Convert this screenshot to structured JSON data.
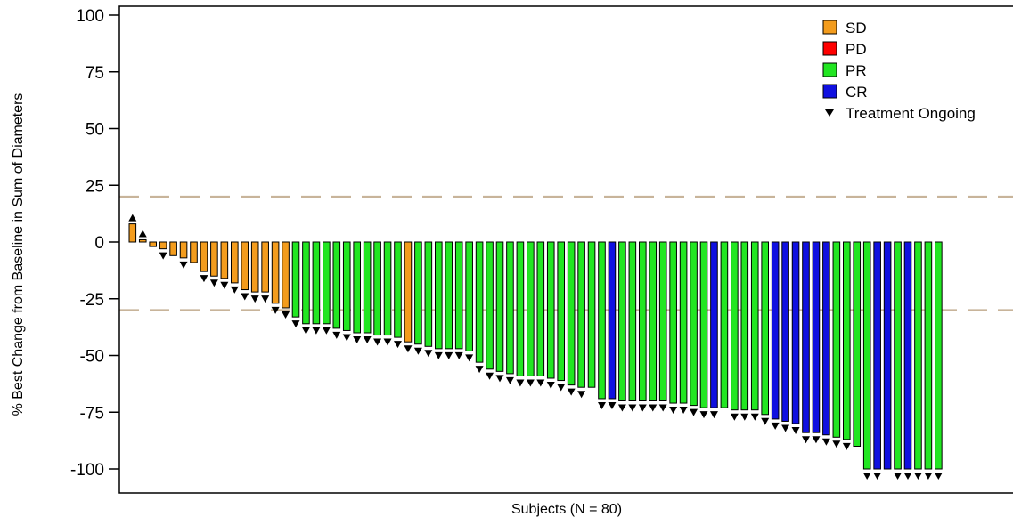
{
  "chart_data": {
    "type": "bar",
    "title": "",
    "xlabel": "Subjects (N = 80)",
    "ylabel": "% Best Change from Baseline in Sum of Diameters",
    "ylim": [
      -110,
      100
    ],
    "yticks": [
      100,
      75,
      50,
      25,
      0,
      -25,
      -50,
      -75,
      -100
    ],
    "reference_lines": [
      20,
      -30
    ],
    "grid": false,
    "legend_position": "top-right",
    "legend": [
      {
        "key": "SD",
        "label": "SD",
        "color": "#f39c1d"
      },
      {
        "key": "PD",
        "label": "PD",
        "color": "#ff0000"
      },
      {
        "key": "PR",
        "label": "PR",
        "color": "#22e622"
      },
      {
        "key": "CR",
        "label": "CR",
        "color": "#1010e0"
      },
      {
        "key": "ongoing",
        "label": "Treatment Ongoing",
        "marker": "down-triangle",
        "color": "#000000"
      }
    ],
    "bars": [
      {
        "value": 8,
        "response": "SD",
        "marker": "up"
      },
      {
        "value": 1,
        "response": "SD",
        "marker": "up"
      },
      {
        "value": -2,
        "response": "SD",
        "marker": "none"
      },
      {
        "value": -3,
        "response": "SD",
        "marker": "down"
      },
      {
        "value": -6,
        "response": "SD",
        "marker": "none"
      },
      {
        "value": -7,
        "response": "SD",
        "marker": "down"
      },
      {
        "value": -9,
        "response": "SD",
        "marker": "none"
      },
      {
        "value": -13,
        "response": "SD",
        "marker": "down"
      },
      {
        "value": -15,
        "response": "SD",
        "marker": "down"
      },
      {
        "value": -16,
        "response": "SD",
        "marker": "down"
      },
      {
        "value": -18,
        "response": "SD",
        "marker": "down"
      },
      {
        "value": -21,
        "response": "SD",
        "marker": "down"
      },
      {
        "value": -22,
        "response": "SD",
        "marker": "down"
      },
      {
        "value": -22,
        "response": "SD",
        "marker": "down"
      },
      {
        "value": -27,
        "response": "SD",
        "marker": "down"
      },
      {
        "value": -29,
        "response": "SD",
        "marker": "down"
      },
      {
        "value": -33,
        "response": "PR",
        "marker": "down"
      },
      {
        "value": -36,
        "response": "PR",
        "marker": "down"
      },
      {
        "value": -36,
        "response": "PR",
        "marker": "down"
      },
      {
        "value": -36,
        "response": "PR",
        "marker": "down"
      },
      {
        "value": -38,
        "response": "PR",
        "marker": "down"
      },
      {
        "value": -39,
        "response": "PR",
        "marker": "down"
      },
      {
        "value": -40,
        "response": "PR",
        "marker": "down"
      },
      {
        "value": -40,
        "response": "PR",
        "marker": "down"
      },
      {
        "value": -41,
        "response": "PR",
        "marker": "down"
      },
      {
        "value": -41,
        "response": "PR",
        "marker": "down"
      },
      {
        "value": -42,
        "response": "PR",
        "marker": "down"
      },
      {
        "value": -44,
        "response": "SD",
        "marker": "down"
      },
      {
        "value": -45,
        "response": "PR",
        "marker": "down"
      },
      {
        "value": -46,
        "response": "PR",
        "marker": "down"
      },
      {
        "value": -47,
        "response": "PR",
        "marker": "down"
      },
      {
        "value": -47,
        "response": "PR",
        "marker": "down"
      },
      {
        "value": -47,
        "response": "PR",
        "marker": "down"
      },
      {
        "value": -48,
        "response": "PR",
        "marker": "down"
      },
      {
        "value": -53,
        "response": "PR",
        "marker": "down"
      },
      {
        "value": -56,
        "response": "PR",
        "marker": "down"
      },
      {
        "value": -57,
        "response": "PR",
        "marker": "down"
      },
      {
        "value": -58,
        "response": "PR",
        "marker": "down"
      },
      {
        "value": -59,
        "response": "PR",
        "marker": "down"
      },
      {
        "value": -59,
        "response": "PR",
        "marker": "down"
      },
      {
        "value": -59,
        "response": "PR",
        "marker": "down"
      },
      {
        "value": -60,
        "response": "PR",
        "marker": "down"
      },
      {
        "value": -61,
        "response": "PR",
        "marker": "down"
      },
      {
        "value": -63,
        "response": "PR",
        "marker": "down"
      },
      {
        "value": -64,
        "response": "PR",
        "marker": "down"
      },
      {
        "value": -64,
        "response": "PR",
        "marker": "none"
      },
      {
        "value": -69,
        "response": "PR",
        "marker": "down"
      },
      {
        "value": -69,
        "response": "CR",
        "marker": "down"
      },
      {
        "value": -70,
        "response": "PR",
        "marker": "down"
      },
      {
        "value": -70,
        "response": "PR",
        "marker": "down"
      },
      {
        "value": -70,
        "response": "PR",
        "marker": "down"
      },
      {
        "value": -70,
        "response": "PR",
        "marker": "down"
      },
      {
        "value": -70,
        "response": "PR",
        "marker": "down"
      },
      {
        "value": -71,
        "response": "PR",
        "marker": "down"
      },
      {
        "value": -71,
        "response": "PR",
        "marker": "down"
      },
      {
        "value": -72,
        "response": "PR",
        "marker": "down"
      },
      {
        "value": -73,
        "response": "PR",
        "marker": "down"
      },
      {
        "value": -73,
        "response": "CR",
        "marker": "down"
      },
      {
        "value": -73,
        "response": "PR",
        "marker": "none"
      },
      {
        "value": -74,
        "response": "PR",
        "marker": "down"
      },
      {
        "value": -74,
        "response": "PR",
        "marker": "down"
      },
      {
        "value": -74,
        "response": "PR",
        "marker": "down"
      },
      {
        "value": -76,
        "response": "PR",
        "marker": "down"
      },
      {
        "value": -78,
        "response": "CR",
        "marker": "down"
      },
      {
        "value": -79,
        "response": "CR",
        "marker": "down"
      },
      {
        "value": -80,
        "response": "CR",
        "marker": "down"
      },
      {
        "value": -84,
        "response": "CR",
        "marker": "down"
      },
      {
        "value": -84,
        "response": "CR",
        "marker": "down"
      },
      {
        "value": -85,
        "response": "CR",
        "marker": "down"
      },
      {
        "value": -86,
        "response": "PR",
        "marker": "down"
      },
      {
        "value": -87,
        "response": "PR",
        "marker": "down"
      },
      {
        "value": -90,
        "response": "PR",
        "marker": "none"
      },
      {
        "value": -100,
        "response": "PR",
        "marker": "down"
      },
      {
        "value": -100,
        "response": "CR",
        "marker": "down"
      },
      {
        "value": -100,
        "response": "CR",
        "marker": "none"
      },
      {
        "value": -100,
        "response": "PR",
        "marker": "down"
      },
      {
        "value": -100,
        "response": "CR",
        "marker": "down"
      },
      {
        "value": -100,
        "response": "PR",
        "marker": "down"
      },
      {
        "value": -100,
        "response": "PR",
        "marker": "down"
      },
      {
        "value": -100,
        "response": "PR",
        "marker": "down"
      }
    ]
  }
}
